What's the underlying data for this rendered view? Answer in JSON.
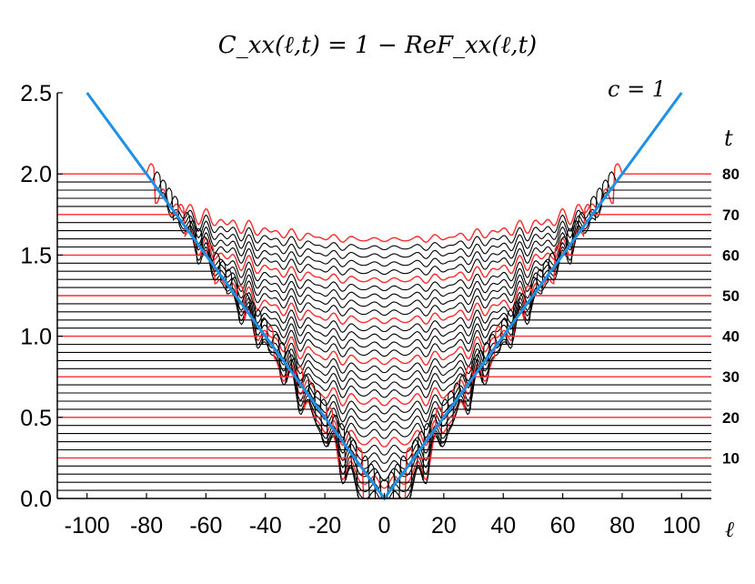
{
  "chart_data": {
    "type": "line",
    "title": "C_xx(ℓ,t) = 1 − ReF_xx(ℓ,t)",
    "xlabel": "ℓ",
    "ylabel": "",
    "xlim": [
      -110,
      110
    ],
    "ylim": [
      0,
      2.5
    ],
    "x_ticks": [
      "-100",
      "-80",
      "-60",
      "-40",
      "-20",
      "0",
      "20",
      "40",
      "60",
      "80",
      "100"
    ],
    "y_ticks": [
      "0.0",
      "0.5",
      "1.0",
      "1.5",
      "2.0",
      "2.5"
    ],
    "annotation": "c = 1",
    "t_axis_label": "t",
    "t_labels": [
      "10",
      "20",
      "30",
      "40",
      "50",
      "60",
      "70",
      "80"
    ],
    "light_cone": {
      "x": [
        -100,
        0,
        100
      ],
      "y": [
        2.5,
        0,
        2.5
      ],
      "color": "#1e90e6"
    },
    "curves": {
      "t_start": 2,
      "t_end": 80,
      "t_step": 2,
      "vertical_offset_per_t": 0.025,
      "highlight_every_t": 10,
      "highlight_color": "#ff2a2a",
      "default_color": "#000000",
      "asymptote": 1.0,
      "x_range": [
        -110,
        110
      ]
    },
    "grid": false,
    "legend": "none"
  }
}
